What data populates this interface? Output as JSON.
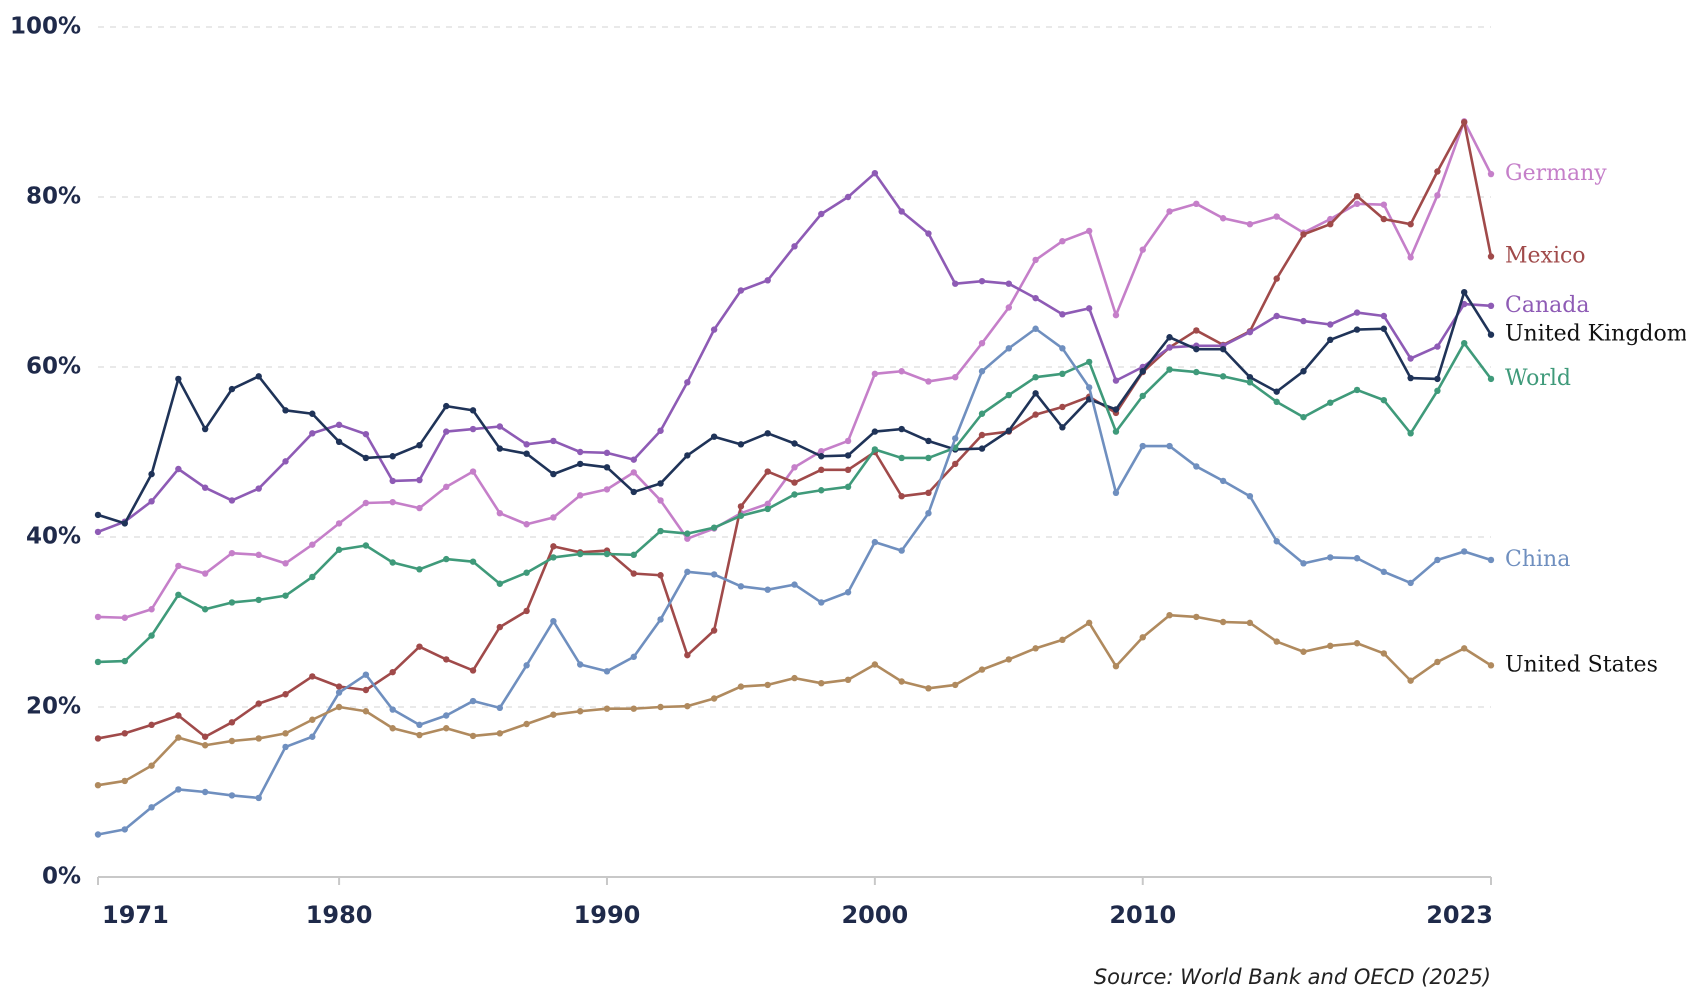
{
  "chart_data": {
    "type": "line",
    "source": "Source: World Bank and OECD (2025)",
    "x": [
      1971,
      1972,
      1973,
      1974,
      1975,
      1976,
      1977,
      1978,
      1979,
      1980,
      1981,
      1982,
      1983,
      1984,
      1985,
      1986,
      1987,
      1988,
      1989,
      1990,
      1991,
      1992,
      1993,
      1994,
      1995,
      1996,
      1997,
      1998,
      1999,
      2000,
      2001,
      2002,
      2003,
      2004,
      2005,
      2006,
      2007,
      2008,
      2009,
      2010,
      2011,
      2012,
      2013,
      2014,
      2015,
      2016,
      2017,
      2018,
      2019,
      2020,
      2021,
      2022,
      2023
    ],
    "xlim": [
      1971,
      2023
    ],
    "xticks": [
      1971,
      1980,
      1990,
      2000,
      2010,
      2023
    ],
    "ylim": [
      0,
      100
    ],
    "yticks": [
      {
        "value": 0,
        "label": "0%"
      },
      {
        "value": 20,
        "label": "20%"
      },
      {
        "value": 40,
        "label": "40%"
      },
      {
        "value": 60,
        "label": "60%"
      },
      {
        "value": 80,
        "label": "80%"
      },
      {
        "value": 100,
        "label": "100%"
      }
    ],
    "grid": true,
    "series": [
      {
        "name": "Germany",
        "color": "#c57fc9",
        "values": [
          30.6,
          30.5,
          31.5,
          36.6,
          35.7,
          38.1,
          37.9,
          36.9,
          39.1,
          41.6,
          44.0,
          44.1,
          43.4,
          45.9,
          47.7,
          42.8,
          41.5,
          42.3,
          44.9,
          45.6,
          47.6,
          44.3,
          39.8,
          41.0,
          42.8,
          43.9,
          48.2,
          50.1,
          51.3,
          59.2,
          59.5,
          58.3,
          58.8,
          62.8,
          67.0,
          72.6,
          74.8,
          76.0,
          66.1,
          73.8,
          78.3,
          79.2,
          77.5,
          76.8,
          77.7,
          75.8,
          77.4,
          79.2,
          79.1,
          72.9,
          80.2,
          88.9,
          82.7
        ]
      },
      {
        "name": "Mexico",
        "color": "#a04a4a",
        "values": [
          16.3,
          16.9,
          17.9,
          19.0,
          16.5,
          18.2,
          20.4,
          21.5,
          23.6,
          22.4,
          22.0,
          24.1,
          27.1,
          25.6,
          24.3,
          29.4,
          31.3,
          38.9,
          38.2,
          38.4,
          35.7,
          35.5,
          26.1,
          29.0,
          43.6,
          47.7,
          46.4,
          47.9,
          47.9,
          50.0,
          44.8,
          45.2,
          48.6,
          52.0,
          52.4,
          54.4,
          55.3,
          56.5,
          54.6,
          59.4,
          62.3,
          64.3,
          62.6,
          64.2,
          70.4,
          75.6,
          76.8,
          80.1,
          77.4,
          76.8,
          83.0,
          88.8,
          73.0
        ]
      },
      {
        "name": "Canada",
        "color": "#8e5bb5",
        "values": [
          40.6,
          41.8,
          44.2,
          48.0,
          45.8,
          44.3,
          45.7,
          48.9,
          52.2,
          53.2,
          52.1,
          46.6,
          46.7,
          52.4,
          52.7,
          53.0,
          50.9,
          51.3,
          50.0,
          49.9,
          49.1,
          52.5,
          58.2,
          64.4,
          69.0,
          70.2,
          74.2,
          78.0,
          80.0,
          82.8,
          78.3,
          75.7,
          69.8,
          70.1,
          69.8,
          68.1,
          66.2,
          66.9,
          58.4,
          60.0,
          62.3,
          62.5,
          62.5,
          64.1,
          66.0,
          65.4,
          65.0,
          66.4,
          66.0,
          61.0,
          62.4,
          67.4,
          67.2
        ]
      },
      {
        "name": "United Kingdom",
        "color": "#1f3358",
        "label_color": "#111111",
        "values": [
          42.6,
          41.6,
          47.4,
          58.6,
          52.7,
          57.4,
          58.9,
          54.9,
          54.5,
          51.2,
          49.3,
          49.5,
          50.8,
          55.4,
          54.9,
          50.4,
          49.8,
          47.4,
          48.6,
          48.2,
          45.3,
          46.3,
          49.6,
          51.8,
          50.9,
          52.2,
          51.0,
          49.5,
          49.6,
          52.4,
          52.7,
          51.3,
          50.3,
          50.4,
          52.5,
          56.9,
          52.9,
          56.2,
          55.0,
          59.5,
          63.5,
          62.1,
          62.1,
          58.8,
          57.1,
          59.5,
          63.2,
          64.4,
          64.5,
          58.7,
          58.6,
          68.8,
          63.8
        ]
      },
      {
        "name": "World",
        "color": "#3f9a7a",
        "values": [
          25.3,
          25.4,
          28.4,
          33.2,
          31.5,
          32.3,
          32.6,
          33.1,
          35.3,
          38.5,
          39.0,
          37.0,
          36.2,
          37.4,
          37.1,
          34.5,
          35.8,
          37.6,
          38.0,
          38.0,
          37.9,
          40.7,
          40.4,
          41.1,
          42.5,
          43.3,
          45.0,
          45.5,
          45.9,
          50.3,
          49.3,
          49.3,
          50.5,
          54.5,
          56.7,
          58.8,
          59.2,
          60.6,
          52.4,
          56.6,
          59.7,
          59.4,
          58.9,
          58.2,
          55.9,
          54.1,
          55.8,
          57.3,
          56.1,
          52.2,
          57.2,
          62.8,
          58.6
        ]
      },
      {
        "name": "China",
        "color": "#6f8fbf",
        "values": [
          5.0,
          5.6,
          8.2,
          10.3,
          10.0,
          9.6,
          9.3,
          15.3,
          16.5,
          21.7,
          23.8,
          19.7,
          17.9,
          19.0,
          20.7,
          19.9,
          24.9,
          30.1,
          25.0,
          24.2,
          25.9,
          30.3,
          35.9,
          35.6,
          34.2,
          33.8,
          34.4,
          32.3,
          33.5,
          39.4,
          38.4,
          42.8,
          51.6,
          59.5,
          62.2,
          64.5,
          62.2,
          57.6,
          45.2,
          50.7,
          50.7,
          48.3,
          46.6,
          44.8,
          39.5,
          36.9,
          37.6,
          37.5,
          35.9,
          34.6,
          37.3,
          38.3,
          37.3
        ]
      },
      {
        "name": "United States",
        "color": "#b08a5e",
        "label_color": "#111111",
        "values": [
          10.8,
          11.3,
          13.1,
          16.4,
          15.5,
          16.0,
          16.3,
          16.9,
          18.5,
          20.0,
          19.5,
          17.5,
          16.7,
          17.5,
          16.6,
          16.9,
          18.0,
          19.1,
          19.5,
          19.8,
          19.8,
          20.0,
          20.1,
          21.0,
          22.4,
          22.6,
          23.4,
          22.8,
          23.2,
          25.0,
          23.0,
          22.2,
          22.6,
          24.4,
          25.6,
          26.9,
          27.9,
          29.9,
          24.8,
          28.2,
          30.8,
          30.6,
          30.0,
          29.9,
          27.7,
          26.5,
          27.2,
          27.5,
          26.3,
          23.1,
          25.3,
          26.9,
          24.9
        ]
      }
    ]
  }
}
